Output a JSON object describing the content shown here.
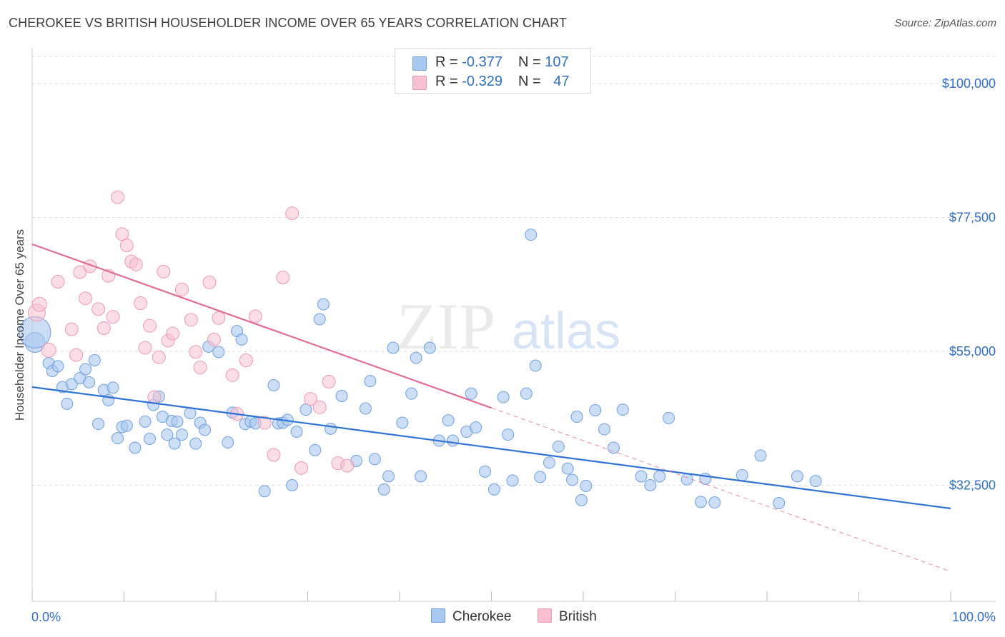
{
  "header": {
    "title": "CHEROKEE VS BRITISH HOUSEHOLDER INCOME OVER 65 YEARS CORRELATION CHART",
    "source": "Source: ZipAtlas.com"
  },
  "watermark": {
    "zip": "ZIP",
    "atlas": "atlas"
  },
  "legend": {
    "cherokee": {
      "r_label": "R = ",
      "r_value": "-0.377",
      "n_label": "N = ",
      "n_value": "107"
    },
    "british": {
      "r_label": "R = ",
      "r_value": "-0.329",
      "n_label": "N = ",
      "n_value": "47"
    }
  },
  "bottom_legend": {
    "cherokee": "Cherokee",
    "british": "British"
  },
  "colors": {
    "cherokee_fill": "#a9c8ef",
    "cherokee_stroke": "#6f9fdc",
    "cherokee_line": "#2f72d6",
    "british_fill": "#f7c1d2",
    "british_stroke": "#ec98b5",
    "british_line": "#e06c94",
    "tick_label": "#2f6fc4",
    "grid": "#dddddd"
  },
  "chart_data": {
    "type": "scatter",
    "title": "CHEROKEE VS BRITISH HOUSEHOLDER INCOME OVER 65 YEARS CORRELATION CHART",
    "xlabel": "",
    "ylabel": "Householder Income Over 65 years",
    "xlim": [
      0,
      100
    ],
    "ylim": [
      13000,
      106000
    ],
    "x_tick_labels": [
      "0.0%",
      "100.0%"
    ],
    "y_ticks": [
      32500,
      55000,
      77500,
      100000
    ],
    "y_tick_labels": [
      "$32,500",
      "$55,000",
      "$77,500",
      "$100,000"
    ],
    "grid": true,
    "legend_position": "top-center",
    "series": [
      {
        "name": "Cherokee",
        "r": -0.377,
        "n": 107,
        "trend": {
          "x": [
            0,
            100
          ],
          "y": [
            49000,
            28600
          ]
        },
        "points": [
          [
            0.3,
            56500,
            14
          ],
          [
            0.3,
            58200,
            22
          ],
          [
            1.8,
            53000,
            8
          ],
          [
            2.2,
            51700,
            8
          ],
          [
            2.8,
            52500,
            8
          ],
          [
            3.3,
            49000,
            8
          ],
          [
            3.8,
            46200,
            8
          ],
          [
            4.3,
            49500,
            8
          ],
          [
            5.2,
            50500,
            8
          ],
          [
            5.8,
            52000,
            8
          ],
          [
            6.2,
            49800,
            8
          ],
          [
            6.8,
            53500,
            8
          ],
          [
            7.2,
            42800,
            8
          ],
          [
            7.8,
            48500,
            8
          ],
          [
            8.3,
            46800,
            8
          ],
          [
            8.8,
            48900,
            8
          ],
          [
            9.3,
            40400,
            8
          ],
          [
            9.8,
            42300,
            8
          ],
          [
            10.3,
            42500,
            8
          ],
          [
            11.2,
            38800,
            8
          ],
          [
            12.3,
            43200,
            8
          ],
          [
            12.8,
            40300,
            8
          ],
          [
            13.2,
            46000,
            8
          ],
          [
            13.8,
            47400,
            8
          ],
          [
            14.2,
            44000,
            8
          ],
          [
            14.7,
            41000,
            8
          ],
          [
            15.2,
            43300,
            8
          ],
          [
            15.5,
            39500,
            8
          ],
          [
            15.8,
            43200,
            8
          ],
          [
            16.3,
            41000,
            8
          ],
          [
            17.2,
            44600,
            8
          ],
          [
            17.8,
            39500,
            8
          ],
          [
            18.3,
            43000,
            8
          ],
          [
            18.8,
            41800,
            8
          ],
          [
            19.2,
            55800,
            8
          ],
          [
            20.3,
            54900,
            8
          ],
          [
            21.3,
            39700,
            8
          ],
          [
            21.8,
            44700,
            8
          ],
          [
            22.3,
            58400,
            8
          ],
          [
            22.8,
            57000,
            8
          ],
          [
            23.2,
            42800,
            8
          ],
          [
            23.8,
            43200,
            8
          ],
          [
            24.3,
            42900,
            8
          ],
          [
            25.3,
            31500,
            8
          ],
          [
            26.3,
            49300,
            8
          ],
          [
            26.8,
            42900,
            8
          ],
          [
            27.3,
            43000,
            8
          ],
          [
            27.8,
            43500,
            8
          ],
          [
            28.3,
            32500,
            8
          ],
          [
            28.8,
            41500,
            8
          ],
          [
            29.8,
            45200,
            8
          ],
          [
            30.8,
            38400,
            8
          ],
          [
            31.3,
            60400,
            8
          ],
          [
            31.7,
            62900,
            8
          ],
          [
            32.5,
            42000,
            8
          ],
          [
            33.7,
            47500,
            8
          ],
          [
            35.3,
            36600,
            8
          ],
          [
            36.3,
            45400,
            8
          ],
          [
            36.8,
            50000,
            8
          ],
          [
            37.3,
            36900,
            8
          ],
          [
            38.3,
            31800,
            8
          ],
          [
            38.8,
            34000,
            8
          ],
          [
            39.3,
            55600,
            8
          ],
          [
            40.3,
            43000,
            8
          ],
          [
            41.3,
            47900,
            8
          ],
          [
            41.8,
            53900,
            8
          ],
          [
            42.3,
            34000,
            8
          ],
          [
            43.3,
            55600,
            8
          ],
          [
            44.3,
            40000,
            8
          ],
          [
            45.3,
            43400,
            8
          ],
          [
            45.8,
            40000,
            8
          ],
          [
            47.3,
            41500,
            8
          ],
          [
            47.8,
            47900,
            8
          ],
          [
            48.3,
            42200,
            8
          ],
          [
            49.3,
            34800,
            8
          ],
          [
            50.3,
            31800,
            8
          ],
          [
            51.3,
            47300,
            8
          ],
          [
            51.8,
            41000,
            8
          ],
          [
            52.3,
            33300,
            8
          ],
          [
            53.8,
            47900,
            8
          ],
          [
            54.3,
            74600,
            8
          ],
          [
            54.8,
            52600,
            8
          ],
          [
            55.3,
            33900,
            8
          ],
          [
            56.3,
            36300,
            8
          ],
          [
            57.3,
            39000,
            8
          ],
          [
            58.3,
            35300,
            8
          ],
          [
            58.8,
            33400,
            8
          ],
          [
            59.3,
            44000,
            8
          ],
          [
            59.8,
            30000,
            8
          ],
          [
            60.3,
            32400,
            8
          ],
          [
            61.3,
            45100,
            8
          ],
          [
            62.3,
            41900,
            8
          ],
          [
            63.3,
            38800,
            8
          ],
          [
            64.3,
            45200,
            8
          ],
          [
            66.3,
            34000,
            8
          ],
          [
            67.3,
            32500,
            8
          ],
          [
            68.3,
            34000,
            8
          ],
          [
            69.3,
            43800,
            8
          ],
          [
            71.3,
            33500,
            8
          ],
          [
            72.8,
            29700,
            8
          ],
          [
            73.3,
            33600,
            8
          ],
          [
            74.3,
            29600,
            8
          ],
          [
            77.3,
            34200,
            8
          ],
          [
            79.3,
            37500,
            8
          ],
          [
            81.3,
            29500,
            8
          ],
          [
            83.3,
            34000,
            8
          ],
          [
            85.3,
            33200,
            8
          ]
        ]
      },
      {
        "name": "British",
        "r": -0.329,
        "n": 47,
        "trend": {
          "x": [
            0,
            50
          ],
          "y": [
            73000,
            45500
          ]
        },
        "trend_dashed": {
          "x": [
            50,
            100
          ],
          "y": [
            45500,
            18000
          ]
        },
        "points": [
          [
            0.5,
            61500,
            12
          ],
          [
            0.8,
            62900,
            10
          ],
          [
            1.8,
            55200,
            10
          ],
          [
            2.8,
            66700,
            9
          ],
          [
            4.3,
            58700,
            9
          ],
          [
            4.8,
            54400,
            9
          ],
          [
            5.2,
            68300,
            9
          ],
          [
            5.8,
            63900,
            9
          ],
          [
            6.3,
            69300,
            9
          ],
          [
            7.2,
            62100,
            9
          ],
          [
            7.8,
            58900,
            9
          ],
          [
            8.3,
            67700,
            9
          ],
          [
            8.8,
            60800,
            9
          ],
          [
            9.3,
            80900,
            9
          ],
          [
            9.8,
            74700,
            9
          ],
          [
            10.3,
            72800,
            9
          ],
          [
            10.8,
            70100,
            9
          ],
          [
            11.3,
            69600,
            9
          ],
          [
            11.8,
            63100,
            9
          ],
          [
            12.3,
            55600,
            9
          ],
          [
            12.8,
            59300,
            9
          ],
          [
            13.3,
            47300,
            9
          ],
          [
            13.8,
            54000,
            9
          ],
          [
            14.3,
            68400,
            9
          ],
          [
            14.8,
            56800,
            9
          ],
          [
            15.3,
            58000,
            9
          ],
          [
            16.3,
            65400,
            9
          ],
          [
            17.3,
            60300,
            9
          ],
          [
            17.8,
            54900,
            9
          ],
          [
            18.3,
            52300,
            9
          ],
          [
            19.3,
            66600,
            9
          ],
          [
            19.8,
            57000,
            9
          ],
          [
            20.3,
            60600,
            9
          ],
          [
            21.8,
            51000,
            9
          ],
          [
            22.3,
            44500,
            9
          ],
          [
            23.3,
            53500,
            9
          ],
          [
            24.3,
            60900,
            9
          ],
          [
            25.3,
            43000,
            9
          ],
          [
            26.3,
            37600,
            9
          ],
          [
            27.3,
            67400,
            9
          ],
          [
            28.3,
            78200,
            9
          ],
          [
            29.3,
            35400,
            9
          ],
          [
            30.3,
            47000,
            9
          ],
          [
            31.3,
            45600,
            9
          ],
          [
            32.3,
            49900,
            9
          ],
          [
            33.3,
            36200,
            9
          ],
          [
            34.3,
            35800,
            9
          ]
        ]
      }
    ]
  }
}
